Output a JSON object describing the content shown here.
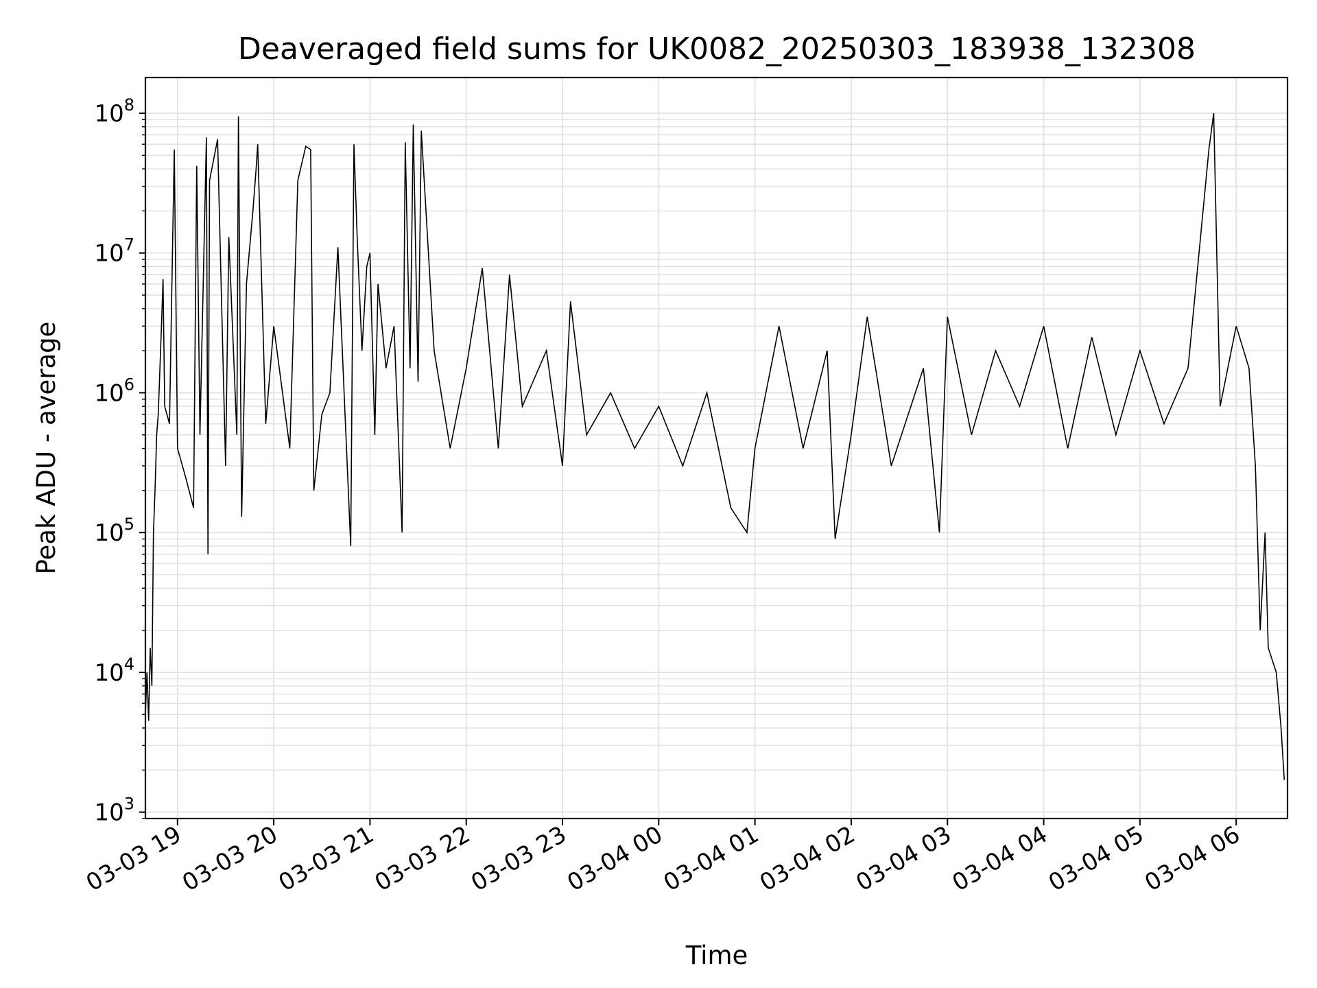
{
  "chart_data": {
    "type": "line",
    "title": "Deaveraged field sums for UK0082_20250303_183938_132308",
    "xlabel": "Time",
    "ylabel": "Peak ADU - average",
    "yscale": "log",
    "ylim": [
      900,
      180000000
    ],
    "xlim": [
      "2025-03-03 18:40",
      "2025-03-04 06:32"
    ],
    "grid": true,
    "line_color": "#000000",
    "x_ticks": [
      {
        "value": "2025-03-03 19:00",
        "label": "03-03 19"
      },
      {
        "value": "2025-03-03 20:00",
        "label": "03-03 20"
      },
      {
        "value": "2025-03-03 21:00",
        "label": "03-03 21"
      },
      {
        "value": "2025-03-03 22:00",
        "label": "03-03 22"
      },
      {
        "value": "2025-03-03 23:00",
        "label": "03-03 23"
      },
      {
        "value": "2025-03-04 00:00",
        "label": "03-04 00"
      },
      {
        "value": "2025-03-04 01:00",
        "label": "03-04 01"
      },
      {
        "value": "2025-03-04 02:00",
        "label": "03-04 02"
      },
      {
        "value": "2025-03-04 03:00",
        "label": "03-04 03"
      },
      {
        "value": "2025-03-04 04:00",
        "label": "03-04 04"
      },
      {
        "value": "2025-03-04 05:00",
        "label": "03-04 05"
      },
      {
        "value": "2025-03-04 06:00",
        "label": "03-04 06"
      }
    ],
    "y_ticks": [
      {
        "value": 1000,
        "base": "10",
        "exp": "3"
      },
      {
        "value": 10000,
        "base": "10",
        "exp": "4"
      },
      {
        "value": 100000,
        "base": "10",
        "exp": "5"
      },
      {
        "value": 1000000,
        "base": "10",
        "exp": "6"
      },
      {
        "value": 10000000,
        "base": "10",
        "exp": "7"
      },
      {
        "value": 100000000,
        "base": "10",
        "exp": "8"
      }
    ],
    "series": [
      {
        "points": [
          [
            "2025-03-03 18:40",
            5000
          ],
          [
            "2025-03-03 18:41",
            10000
          ],
          [
            "2025-03-03 18:42",
            4500
          ],
          [
            "2025-03-03 18:43",
            15000
          ],
          [
            "2025-03-03 18:44",
            8000
          ],
          [
            "2025-03-03 18:45",
            100000
          ],
          [
            "2025-03-03 18:46",
            200000
          ],
          [
            "2025-03-03 18:47",
            500000
          ],
          [
            "2025-03-03 18:48",
            700000
          ],
          [
            "2025-03-03 18:50",
            3000000
          ],
          [
            "2025-03-03 18:51",
            6500000
          ],
          [
            "2025-03-03 18:52",
            800000
          ],
          [
            "2025-03-03 18:55",
            600000
          ],
          [
            "2025-03-03 18:57",
            13000000
          ],
          [
            "2025-03-03 18:58",
            55000000
          ],
          [
            "2025-03-03 19:00",
            400000
          ],
          [
            "2025-03-03 19:05",
            250000
          ],
          [
            "2025-03-03 19:10",
            150000
          ],
          [
            "2025-03-03 19:12",
            42000000
          ],
          [
            "2025-03-03 19:14",
            500000
          ],
          [
            "2025-03-03 19:18",
            67000000
          ],
          [
            "2025-03-03 19:19",
            70000
          ],
          [
            "2025-03-03 19:20",
            33000000
          ],
          [
            "2025-03-03 19:25",
            65000000
          ],
          [
            "2025-03-03 19:30",
            300000
          ],
          [
            "2025-03-03 19:32",
            13000000
          ],
          [
            "2025-03-03 19:37",
            500000
          ],
          [
            "2025-03-03 19:38",
            95000000
          ],
          [
            "2025-03-03 19:40",
            130000
          ],
          [
            "2025-03-03 19:43",
            6000000
          ],
          [
            "2025-03-03 19:47",
            20000000
          ],
          [
            "2025-03-03 19:49",
            40000000
          ],
          [
            "2025-03-03 19:50",
            60000000
          ],
          [
            "2025-03-03 19:55",
            600000
          ],
          [
            "2025-03-03 20:00",
            3000000
          ],
          [
            "2025-03-03 20:10",
            400000
          ],
          [
            "2025-03-03 20:15",
            33000000
          ],
          [
            "2025-03-03 20:20",
            58000000
          ],
          [
            "2025-03-03 20:23",
            55000000
          ],
          [
            "2025-03-03 20:25",
            200000
          ],
          [
            "2025-03-03 20:30",
            700000
          ],
          [
            "2025-03-03 20:35",
            1000000
          ],
          [
            "2025-03-03 20:40",
            11000000
          ],
          [
            "2025-03-03 20:45",
            500000
          ],
          [
            "2025-03-03 20:48",
            80000
          ],
          [
            "2025-03-03 20:50",
            60000000
          ],
          [
            "2025-03-03 20:52",
            13000000
          ],
          [
            "2025-03-03 20:55",
            2000000
          ],
          [
            "2025-03-03 20:58",
            8000000
          ],
          [
            "2025-03-03 21:00",
            10000000
          ],
          [
            "2025-03-03 21:03",
            500000
          ],
          [
            "2025-03-03 21:05",
            6000000
          ],
          [
            "2025-03-03 21:10",
            1500000
          ],
          [
            "2025-03-03 21:15",
            3000000
          ],
          [
            "2025-03-03 21:20",
            100000
          ],
          [
            "2025-03-03 21:22",
            62000000
          ],
          [
            "2025-03-03 21:25",
            1500000
          ],
          [
            "2025-03-03 21:27",
            83000000
          ],
          [
            "2025-03-03 21:30",
            1200000
          ],
          [
            "2025-03-03 21:32",
            75000000
          ],
          [
            "2025-03-03 21:40",
            2000000
          ],
          [
            "2025-03-03 21:50",
            400000
          ],
          [
            "2025-03-03 22:00",
            1500000
          ],
          [
            "2025-03-03 22:10",
            7800000
          ],
          [
            "2025-03-03 22:20",
            400000
          ],
          [
            "2025-03-03 22:27",
            7000000
          ],
          [
            "2025-03-03 22:35",
            800000
          ],
          [
            "2025-03-03 22:50",
            2000000
          ],
          [
            "2025-03-03 23:00",
            300000
          ],
          [
            "2025-03-03 23:05",
            4500000
          ],
          [
            "2025-03-03 23:15",
            500000
          ],
          [
            "2025-03-03 23:30",
            1000000
          ],
          [
            "2025-03-03 23:45",
            400000
          ],
          [
            "2025-03-04 00:00",
            800000
          ],
          [
            "2025-03-04 00:15",
            300000
          ],
          [
            "2025-03-04 00:30",
            1000000
          ],
          [
            "2025-03-04 00:45",
            150000
          ],
          [
            "2025-03-04 00:55",
            100000
          ],
          [
            "2025-03-04 01:00",
            400000
          ],
          [
            "2025-03-04 01:15",
            3000000
          ],
          [
            "2025-03-04 01:30",
            400000
          ],
          [
            "2025-03-04 01:45",
            2000000
          ],
          [
            "2025-03-04 01:50",
            90000
          ],
          [
            "2025-03-04 02:00",
            500000
          ],
          [
            "2025-03-04 02:10",
            3500000
          ],
          [
            "2025-03-04 02:25",
            300000
          ],
          [
            "2025-03-04 02:45",
            1500000
          ],
          [
            "2025-03-04 02:55",
            100000
          ],
          [
            "2025-03-04 03:00",
            3500000
          ],
          [
            "2025-03-04 03:15",
            500000
          ],
          [
            "2025-03-04 03:30",
            2000000
          ],
          [
            "2025-03-04 03:45",
            800000
          ],
          [
            "2025-03-04 04:00",
            3000000
          ],
          [
            "2025-03-04 04:15",
            400000
          ],
          [
            "2025-03-04 04:30",
            2500000
          ],
          [
            "2025-03-04 04:45",
            500000
          ],
          [
            "2025-03-04 05:00",
            2000000
          ],
          [
            "2025-03-04 05:15",
            600000
          ],
          [
            "2025-03-04 05:30",
            1500000
          ],
          [
            "2025-03-04 05:43",
            55000000
          ],
          [
            "2025-03-04 05:46",
            100000000
          ],
          [
            "2025-03-04 05:50",
            800000
          ],
          [
            "2025-03-04 06:00",
            3000000
          ],
          [
            "2025-03-04 06:08",
            1500000
          ],
          [
            "2025-03-04 06:12",
            300000
          ],
          [
            "2025-03-04 06:15",
            20000
          ],
          [
            "2025-03-04 06:18",
            100000
          ],
          [
            "2025-03-04 06:20",
            15000
          ],
          [
            "2025-03-04 06:25",
            10000
          ],
          [
            "2025-03-04 06:28",
            4000
          ],
          [
            "2025-03-04 06:30",
            1700
          ]
        ]
      }
    ]
  }
}
